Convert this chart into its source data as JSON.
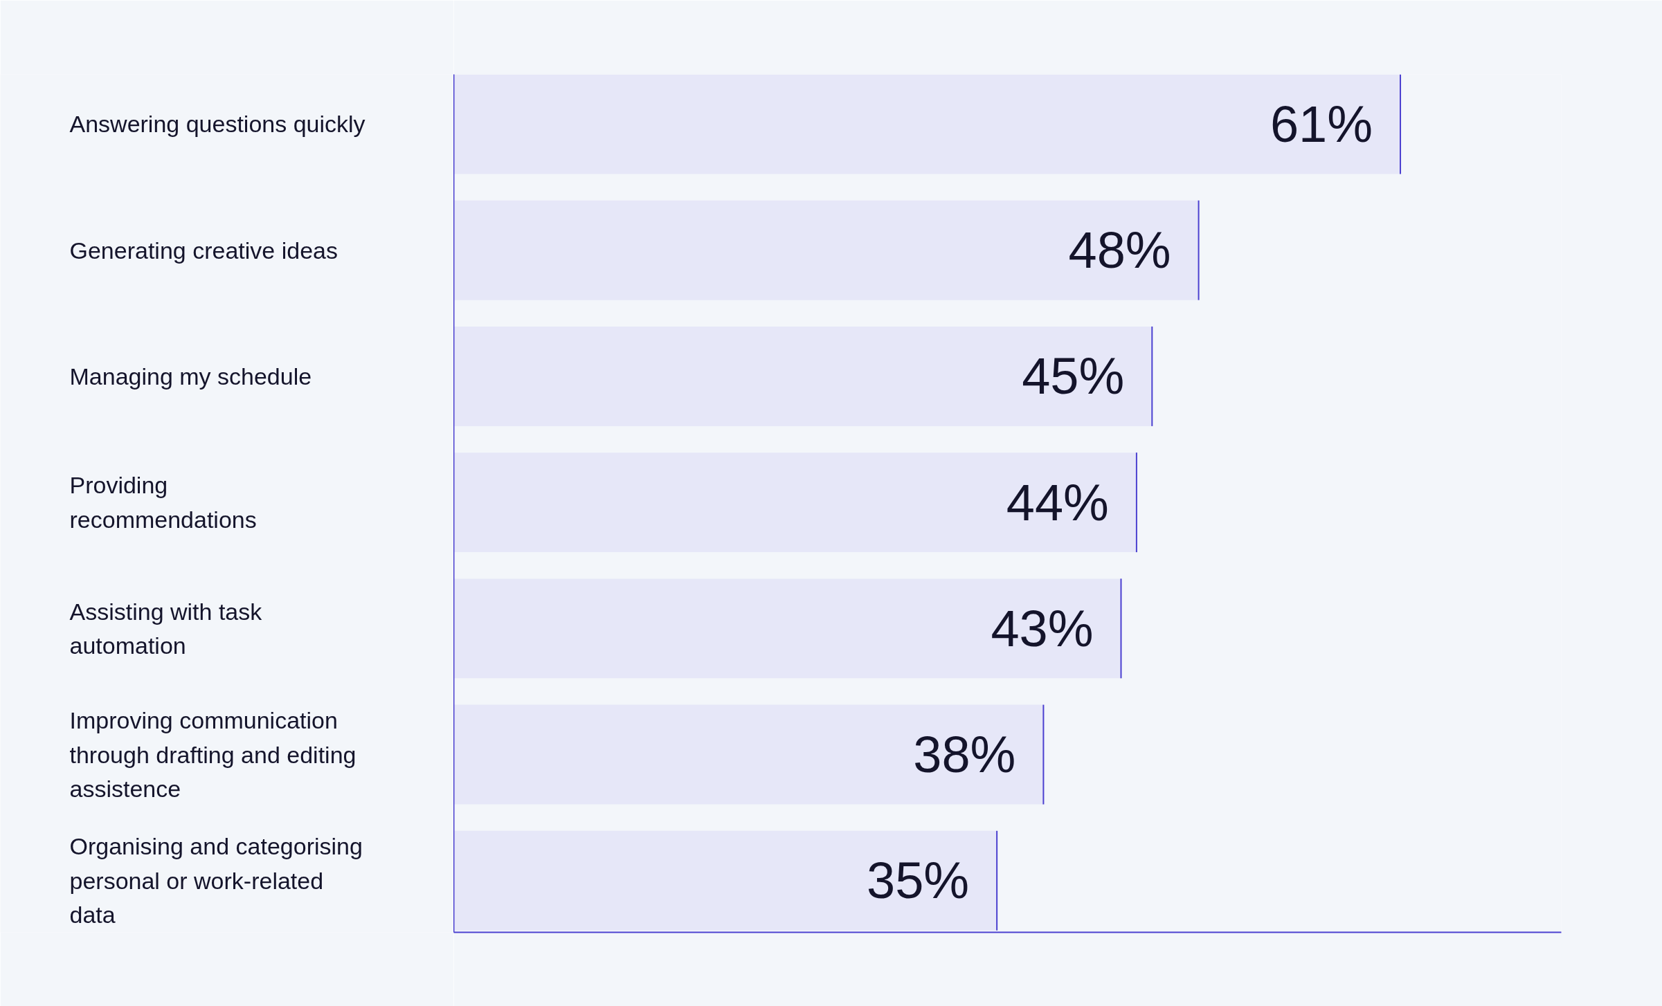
{
  "chart_data": {
    "type": "bar",
    "orientation": "horizontal",
    "categories": [
      "Answering questions quickly",
      "Generating creative ideas",
      "Managing my schedule",
      "Providing\nrecommendations",
      "Assisting with task\nautomation",
      "Improving communication\nthrough drafting and editing\nassistence",
      "Organising and categorising\npersonal or work-related\ndata"
    ],
    "values": [
      61,
      48,
      45,
      44,
      43,
      38,
      35
    ],
    "value_labels": [
      "61%",
      "48%",
      "45%",
      "44%",
      "43%",
      "38%",
      "35%"
    ],
    "color": "#e6e7f8"
  }
}
